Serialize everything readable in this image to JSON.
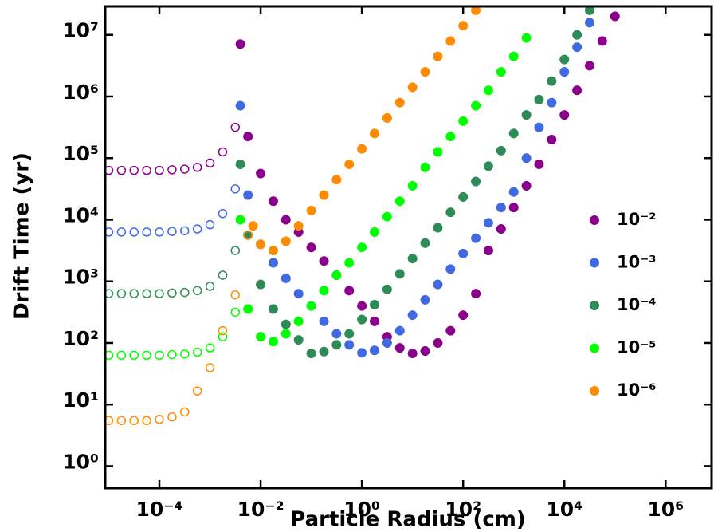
{
  "chart_data": {
    "type": "scatter",
    "xlabel": "Particle Radius (cm)",
    "ylabel": "Drift Time (yr)",
    "xscale": "log",
    "yscale": "log",
    "xlim": [
      8.5e-06,
      8100000
    ],
    "ylim": [
      0.44,
      29000000
    ],
    "xticks": [
      {
        "value": 0.0001,
        "label": "10⁻⁴"
      },
      {
        "value": 0.01,
        "label": "10⁻²"
      },
      {
        "value": 1,
        "label": "10⁰"
      },
      {
        "value": 100,
        "label": "10²"
      },
      {
        "value": 10000,
        "label": "10⁴"
      },
      {
        "value": 1000000,
        "label": "10⁶"
      }
    ],
    "yticks": [
      {
        "value": 1,
        "label": "10⁰"
      },
      {
        "value": 10,
        "label": "10¹"
      },
      {
        "value": 100,
        "label": "10²"
      },
      {
        "value": 1000,
        "label": "10³"
      },
      {
        "value": 10000,
        "label": "10⁴"
      },
      {
        "value": 100000,
        "label": "10⁵"
      },
      {
        "value": 1000000,
        "label": "10⁶"
      },
      {
        "value": 10000000,
        "label": "10⁷"
      }
    ],
    "legend": "center right",
    "series": [
      {
        "name": "10⁻²",
        "color": "#8b008b",
        "segments": [
          {
            "marker": "open",
            "x": [
              1e-05,
              1.78e-05,
              3.16e-05,
              5.62e-05,
              0.0001,
              0.000178,
              0.000316,
              0.000562,
              0.001,
              0.00178,
              0.00316
            ],
            "values": [
              63100,
              63100,
              63100,
              63100,
              63100,
              64600,
              66100,
              70800,
              83200,
              126000,
              316000
            ]
          },
          {
            "marker": "filled",
            "x": [
              0.00398,
              0.00562,
              0.01,
              0.0178,
              0.0316,
              0.0562,
              0.1,
              0.178,
              0.316,
              0.562,
              1,
              1.78,
              3.16,
              5.62,
              10,
              17.8,
              31.6,
              56.2,
              100,
              178,
              316,
              562,
              1000,
              1780,
              3160,
              5620,
              10000,
              17800,
              31600,
              56200,
              100000
            ],
            "values": [
              7080000,
              224000,
              56200,
              20000,
              10000,
              6310,
              3550,
              2140,
              1260,
              708,
              398,
              224,
              126,
              83.2,
              67.6,
              74.1,
              100,
              158,
              282,
              631,
              3160,
              7080,
              15800,
              35500,
              79400,
              200000,
              501000,
              1260000,
              3160000,
              7940000,
              20000000
            ]
          }
        ]
      },
      {
        "name": "10⁻³",
        "color": "#4169e1",
        "segments": [
          {
            "marker": "open",
            "x": [
              1e-05,
              1.78e-05,
              3.16e-05,
              5.62e-05,
              0.0001,
              0.000178,
              0.000316,
              0.000562,
              0.001,
              0.00178,
              0.00316
            ],
            "values": [
              6310,
              6310,
              6310,
              6310,
              6310,
              6460,
              6610,
              7080,
              8320,
              12600,
              31600
            ]
          },
          {
            "marker": "filled",
            "x": [
              0.00398,
              0.00562,
              0.01,
              0.0178,
              0.0316,
              0.0562,
              0.1,
              0.178,
              0.316,
              0.562,
              1,
              1.78,
              3.16,
              5.62,
              10,
              17.8,
              31.6,
              56.2,
              100,
              178,
              316,
              562,
              1000,
              1780,
              3160,
              5620,
              10000,
              17800,
              31600
            ],
            "values": [
              708000,
              25100,
              3980,
              2000,
              1120,
              631,
              398,
              224,
              141,
              93.3,
              69.2,
              75.9,
              100,
              158,
              282,
              501,
              891,
              1580,
              2820,
              5010,
              8910,
              15800,
              28200,
              100000,
              316000,
              794000,
              2510000,
              6310000,
              15800000
            ]
          }
        ]
      },
      {
        "name": "10⁻⁴",
        "color": "#2e8b57",
        "segments": [
          {
            "marker": "open",
            "x": [
              1e-05,
              1.78e-05,
              3.16e-05,
              5.62e-05,
              0.0001,
              0.000178,
              0.000316,
              0.000562,
              0.001,
              0.00178,
              0.00316
            ],
            "values": [
              631,
              631,
              631,
              631,
              631,
              646,
              661,
              708,
              832,
              1260,
              3160
            ]
          },
          {
            "marker": "filled",
            "x": [
              0.00398,
              0.00562,
              0.01,
              0.0178,
              0.0316,
              0.0562,
              0.1,
              0.178,
              0.316,
              0.562,
              1,
              1.78,
              3.16,
              5.62,
              10,
              17.8,
              31.6,
              56.2,
              100,
              178,
              316,
              562,
              1000,
              1780,
              3160,
              5620,
              10000,
              17800,
              31600
            ],
            "values": [
              79400,
              5620,
              891,
              355,
              200,
              112,
              67.6,
              72.4,
              93.3,
              141,
              240,
              417,
              741,
              1320,
              2340,
              4170,
              7410,
              13200,
              23400,
              41700,
              74100,
              132000,
              251000,
              501000,
              891000,
              1780000,
              3980000,
              10000000,
              25100000
            ]
          }
        ]
      },
      {
        "name": "10⁻⁵",
        "color": "#00ff00",
        "segments": [
          {
            "marker": "open",
            "x": [
              1e-05,
              1.78e-05,
              3.16e-05,
              5.62e-05,
              0.0001,
              0.000178,
              0.000316,
              0.000562,
              0.001,
              0.00178,
              0.00316
            ],
            "values": [
              63.1,
              63.1,
              63.1,
              63.1,
              63.1,
              64.6,
              66.1,
              70.8,
              83.2,
              126,
              316
            ]
          },
          {
            "marker": "filled",
            "x": [
              0.00398,
              0.00562,
              0.01,
              0.0178,
              0.0316,
              0.0562,
              0.1,
              0.178,
              0.316,
              0.562,
              1,
              1.78,
              3.16,
              5.62,
              10,
              17.8,
              31.6,
              56.2,
              100,
              178,
              316,
              562,
              1000,
              1780
            ],
            "values": [
              10000,
              355,
              126,
              105,
              141,
              224,
              398,
              708,
              1260,
              2000,
              3550,
              6310,
              11200,
              20000,
              35500,
              70800,
              126000,
              224000,
              398000,
              708000,
              1260000,
              2510000,
              4470000,
              8910000
            ]
          }
        ]
      },
      {
        "name": "10⁻⁶",
        "color": "#ff8c00",
        "segments": [
          {
            "marker": "open",
            "x": [
              1e-05,
              1.78e-05,
              3.16e-05,
              5.62e-05,
              0.0001,
              0.000178,
              0.000316,
              0.000562,
              0.001,
              0.00178,
              0.00316,
              0.00562
            ],
            "values": [
              5.5,
              5.5,
              5.5,
              5.5,
              5.75,
              6.31,
              7.59,
              16.6,
              39.8,
              158,
              603,
              5620
            ]
          },
          {
            "marker": "filled",
            "x": [
              0.00708,
              0.01,
              0.0178,
              0.0316,
              0.0562,
              0.1,
              0.178,
              0.316,
              0.562,
              1,
              1.78,
              3.16,
              5.62,
              10,
              17.8,
              31.6,
              56.2,
              100,
              178
            ],
            "values": [
              7940,
              3980,
              3160,
              4470,
              7940,
              14100,
              25100,
              44700,
              79400,
              141000,
              251000,
              447000,
              794000,
              1410000,
              2510000,
              4470000,
              7940000,
              14100000,
              25100000
            ]
          }
        ]
      }
    ]
  }
}
